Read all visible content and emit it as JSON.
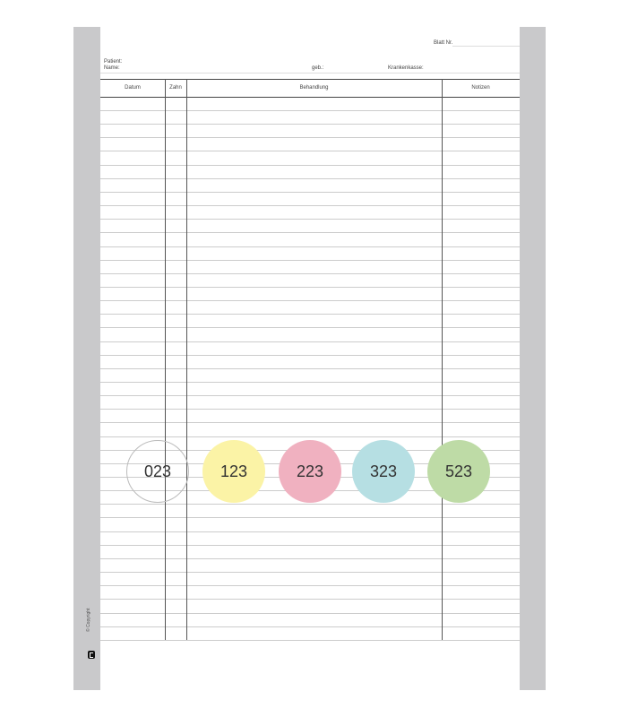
{
  "header": {
    "blatt_label": "Blatt Nr.",
    "patient_label": "Patient:",
    "name_label": "Name:",
    "geb_label": "geb.:",
    "kasse_label": "Krankenkasse:"
  },
  "table": {
    "columns": [
      "Datum",
      "Zahn",
      "Behandlung",
      "Notizen"
    ]
  },
  "circles": [
    {
      "label": "023",
      "color": "#ffffff"
    },
    {
      "label": "123",
      "color": "#fbf3a6"
    },
    {
      "label": "223",
      "color": "#f0b1c0"
    },
    {
      "label": "323",
      "color": "#b6dfe3"
    },
    {
      "label": "523",
      "color": "#bedba6"
    }
  ],
  "footer": {
    "copyright": "© Copyright"
  },
  "logo_icon": "brand-logo-icon"
}
